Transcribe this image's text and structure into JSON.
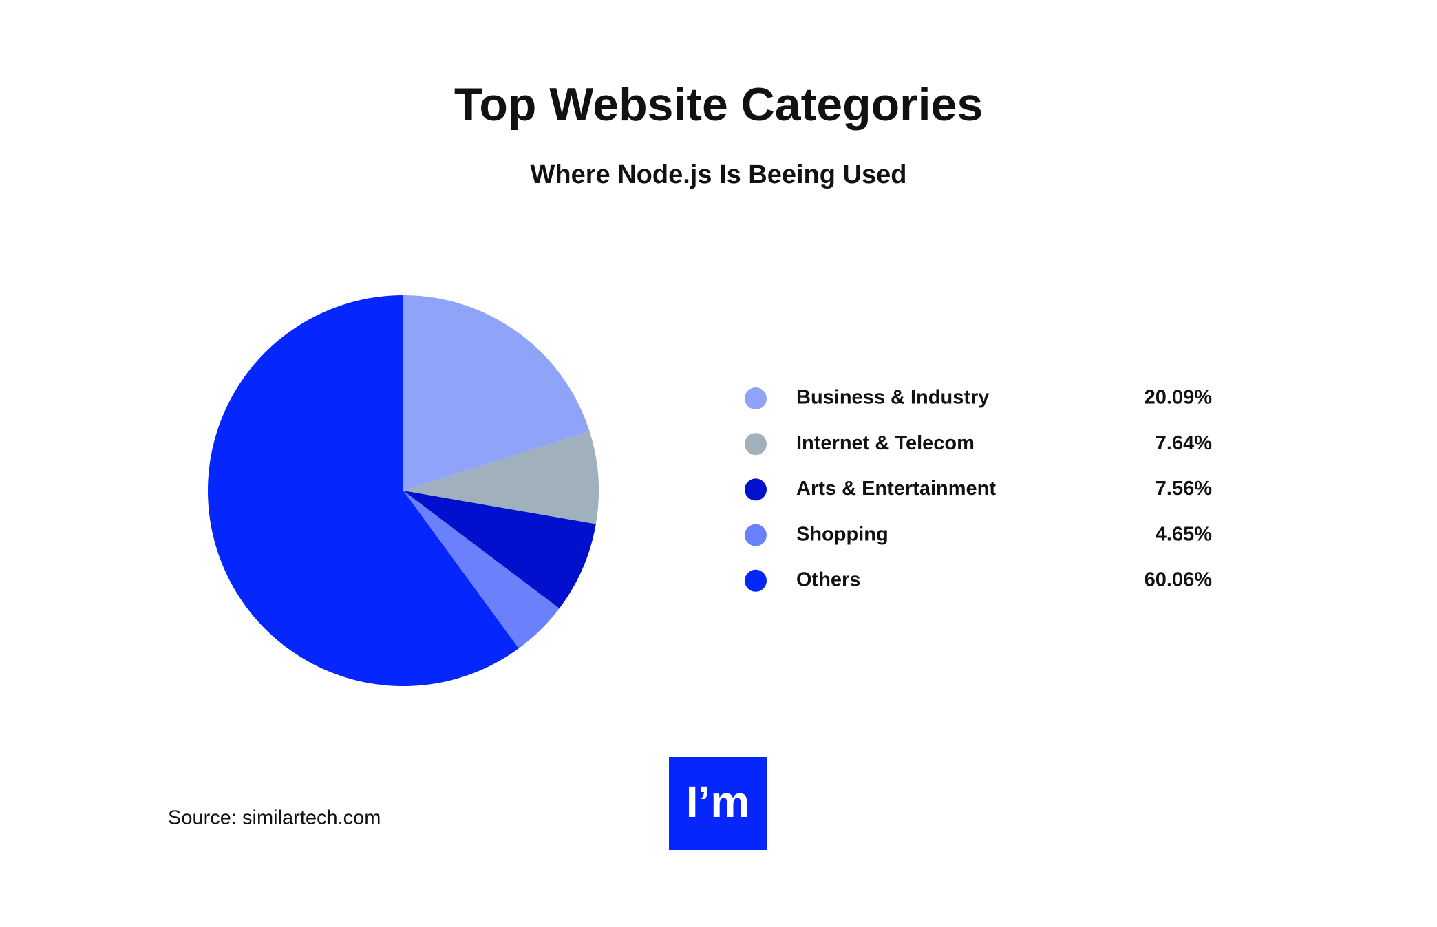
{
  "chart_data": {
    "type": "pie",
    "title": "Top Website Categories",
    "subtitle": "Where Node.js Is Beeing Used",
    "categories": [
      "Business & Industry",
      "Internet & Telecom",
      "Arts & Entertainment",
      "Shopping",
      "Others"
    ],
    "values": [
      20.09,
      7.64,
      7.56,
      4.65,
      60.06
    ],
    "value_labels": [
      "20.09%",
      "7.64%",
      "7.56%",
      "4.65%",
      "60.06%"
    ],
    "colors": [
      "#8fa3f9",
      "#a0b0bd",
      "#0010cc",
      "#6b80fb",
      "#0527fe"
    ],
    "source": "Source: similartech.com"
  },
  "logo": {
    "text": "I’m"
  }
}
